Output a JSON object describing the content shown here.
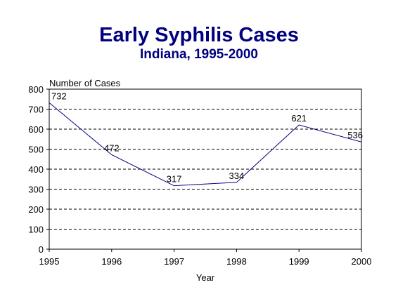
{
  "chart_data": {
    "type": "line",
    "title": "Early Syphilis Cases",
    "subtitle": "Indiana, 1995-2000",
    "xlabel": "Year",
    "ylabel": "Number of Cases",
    "x": [
      "1995",
      "1996",
      "1997",
      "1998",
      "1999",
      "2000"
    ],
    "series": [
      {
        "values": [
          732,
          472,
          317,
          334,
          621,
          536
        ]
      }
    ],
    "data_labels": [
      "732",
      "472",
      "317",
      "334",
      "621",
      "536"
    ],
    "ylim": [
      0,
      800
    ],
    "yticks": [
      0,
      100,
      200,
      300,
      400,
      500,
      600,
      700,
      800
    ],
    "grid": "horizontal dashed",
    "line_color": "#000080",
    "title_color": "#000080"
  }
}
